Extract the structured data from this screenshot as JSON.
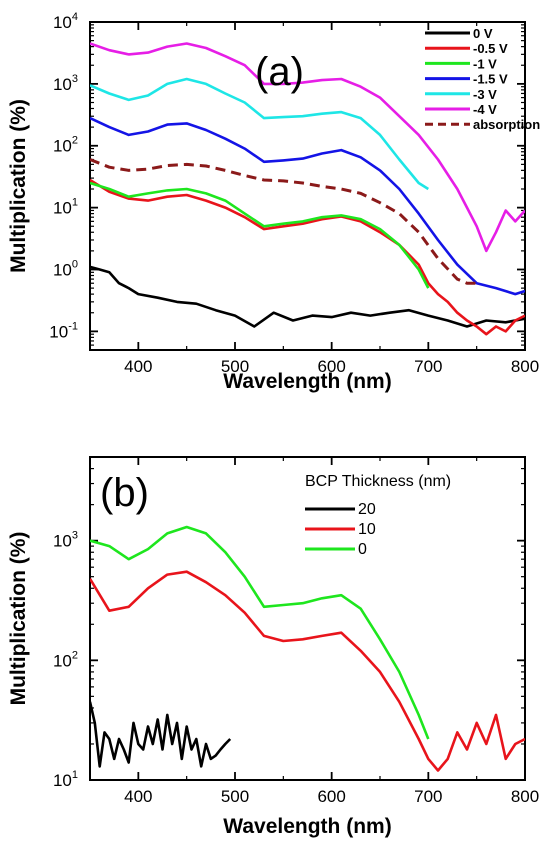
{
  "chart_data": [
    {
      "type": "line",
      "panel_label": "(a)",
      "xlabel": "Wavelength (nm)",
      "ylabel": "Multiplication (%)",
      "xlim": [
        350,
        800
      ],
      "ylim": [
        0.05,
        10000
      ],
      "yscale": "log",
      "xticks": [
        400,
        500,
        600,
        700,
        800
      ],
      "yticks": [
        {
          "value": 0.1,
          "base": "10",
          "exp": "-1"
        },
        {
          "value": 1,
          "base": "10",
          "exp": "0"
        },
        {
          "value": 10,
          "base": "10",
          "exp": "1"
        },
        {
          "value": 100,
          "base": "10",
          "exp": "2"
        },
        {
          "value": 1000,
          "base": "10",
          "exp": "3"
        },
        {
          "value": 10000,
          "base": "10",
          "exp": "4"
        }
      ],
      "legend_position": "top-right",
      "series": [
        {
          "name": "0 V",
          "color": "#000000",
          "dash": false,
          "x": [
            350,
            360,
            370,
            380,
            390,
            400,
            420,
            440,
            460,
            480,
            500,
            520,
            540,
            560,
            580,
            600,
            620,
            640,
            660,
            680,
            700,
            720,
            740,
            760,
            780,
            800
          ],
          "y": [
            1.1,
            1.0,
            0.9,
            0.6,
            0.5,
            0.4,
            0.35,
            0.3,
            0.28,
            0.22,
            0.18,
            0.12,
            0.2,
            0.15,
            0.18,
            0.17,
            0.2,
            0.18,
            0.2,
            0.22,
            0.18,
            0.15,
            0.12,
            0.15,
            0.14,
            0.16
          ]
        },
        {
          "name": "-0.5 V",
          "color": "#e8141b",
          "dash": false,
          "x": [
            350,
            370,
            390,
            410,
            430,
            450,
            470,
            490,
            510,
            530,
            550,
            570,
            590,
            610,
            630,
            650,
            670,
            690,
            700,
            710,
            720,
            730,
            740,
            750,
            760,
            770,
            780,
            790,
            800
          ],
          "y": [
            28,
            18,
            14,
            13,
            15,
            16,
            13,
            10,
            7,
            4.5,
            5,
            5.5,
            6.5,
            7.2,
            6,
            4,
            2.5,
            1.2,
            0.6,
            0.4,
            0.3,
            0.2,
            0.15,
            0.12,
            0.09,
            0.12,
            0.1,
            0.15,
            0.18
          ]
        },
        {
          "name": "-1 V",
          "color": "#1ee61e",
          "dash": false,
          "x": [
            350,
            370,
            390,
            410,
            430,
            450,
            470,
            490,
            510,
            530,
            550,
            570,
            590,
            610,
            630,
            650,
            670,
            690,
            700
          ],
          "y": [
            25,
            20,
            15,
            17,
            19,
            20,
            17,
            13,
            8,
            5,
            5.5,
            6,
            7,
            7.5,
            6.5,
            4.5,
            2.5,
            1,
            0.5
          ]
        },
        {
          "name": "-1.5 V",
          "color": "#1414e6",
          "dash": false,
          "x": [
            350,
            370,
            390,
            410,
            430,
            450,
            470,
            490,
            510,
            530,
            550,
            570,
            590,
            610,
            630,
            650,
            670,
            690,
            710,
            730,
            750,
            770,
            790,
            800
          ],
          "y": [
            280,
            200,
            150,
            170,
            220,
            230,
            180,
            130,
            90,
            55,
            58,
            62,
            75,
            85,
            65,
            40,
            20,
            8,
            3,
            1.2,
            0.6,
            0.5,
            0.4,
            0.45
          ]
        },
        {
          "name": "-3 V",
          "color": "#1ee6e6",
          "dash": false,
          "x": [
            350,
            370,
            390,
            410,
            430,
            450,
            470,
            490,
            510,
            530,
            550,
            570,
            590,
            610,
            630,
            650,
            670,
            690,
            700
          ],
          "y": [
            950,
            700,
            550,
            650,
            1000,
            1200,
            1000,
            700,
            500,
            280,
            290,
            300,
            330,
            350,
            280,
            150,
            60,
            25,
            20
          ]
        },
        {
          "name": "-4 V",
          "color": "#e61ee6",
          "dash": false,
          "x": [
            350,
            370,
            390,
            410,
            430,
            450,
            470,
            490,
            510,
            530,
            550,
            570,
            590,
            610,
            630,
            650,
            670,
            690,
            710,
            730,
            740,
            750,
            760,
            770,
            780,
            790,
            800
          ],
          "y": [
            4500,
            3500,
            3000,
            3200,
            4000,
            4500,
            3800,
            2800,
            2000,
            1000,
            1000,
            1050,
            1150,
            1200,
            900,
            600,
            300,
            150,
            60,
            20,
            10,
            5,
            2,
            4,
            9,
            6,
            9
          ]
        },
        {
          "name": "absorption",
          "color": "#8b1a1a",
          "dash": true,
          "x": [
            350,
            370,
            390,
            410,
            430,
            450,
            470,
            490,
            510,
            530,
            550,
            570,
            590,
            610,
            630,
            650,
            670,
            690,
            710,
            730,
            740,
            750
          ],
          "y": [
            60,
            45,
            40,
            42,
            48,
            50,
            47,
            40,
            33,
            28,
            27,
            25,
            22,
            20,
            17,
            12,
            8,
            4,
            1.5,
            0.7,
            0.6,
            0.6
          ]
        }
      ]
    },
    {
      "type": "line",
      "panel_label": "(b)",
      "xlabel": "Wavelength (nm)",
      "ylabel": "Multiplication (%)",
      "xlim": [
        350,
        800
      ],
      "ylim": [
        10,
        5000
      ],
      "yscale": "log",
      "xticks": [
        400,
        500,
        600,
        700,
        800
      ],
      "yticks": [
        {
          "value": 10,
          "base": "10",
          "exp": "1"
        },
        {
          "value": 100,
          "base": "10",
          "exp": "2"
        },
        {
          "value": 1000,
          "base": "10",
          "exp": "3"
        }
      ],
      "legend_title": "BCP Thickness (nm)",
      "legend_position": "top-right",
      "series": [
        {
          "name": "20",
          "color": "#000000",
          "dash": false,
          "x": [
            350,
            355,
            360,
            365,
            370,
            375,
            380,
            385,
            390,
            395,
            400,
            405,
            410,
            415,
            420,
            425,
            430,
            435,
            440,
            445,
            450,
            455,
            460,
            465,
            470,
            475,
            480,
            485,
            490,
            495
          ],
          "y": [
            45,
            30,
            13,
            25,
            22,
            15,
            22,
            18,
            14,
            30,
            20,
            18,
            28,
            20,
            32,
            18,
            35,
            20,
            30,
            15,
            28,
            18,
            22,
            13,
            20,
            15,
            16,
            18,
            20,
            22
          ]
        },
        {
          "name": "10",
          "color": "#e8141b",
          "dash": false,
          "x": [
            350,
            370,
            390,
            410,
            430,
            450,
            470,
            490,
            510,
            530,
            550,
            570,
            590,
            610,
            630,
            650,
            670,
            690,
            700,
            710,
            720,
            730,
            740,
            750,
            760,
            770,
            780,
            790,
            800
          ],
          "y": [
            480,
            260,
            280,
            400,
            520,
            550,
            450,
            350,
            250,
            160,
            145,
            150,
            160,
            170,
            120,
            80,
            45,
            22,
            15,
            12,
            15,
            25,
            18,
            30,
            20,
            35,
            15,
            20,
            22
          ]
        },
        {
          "name": "0",
          "color": "#1ee61e",
          "dash": false,
          "x": [
            350,
            370,
            390,
            410,
            430,
            450,
            470,
            490,
            510,
            530,
            550,
            570,
            590,
            610,
            630,
            650,
            670,
            690,
            700
          ],
          "y": [
            1000,
            900,
            700,
            850,
            1150,
            1300,
            1150,
            800,
            500,
            280,
            290,
            300,
            330,
            350,
            270,
            150,
            80,
            35,
            22
          ]
        }
      ]
    }
  ]
}
